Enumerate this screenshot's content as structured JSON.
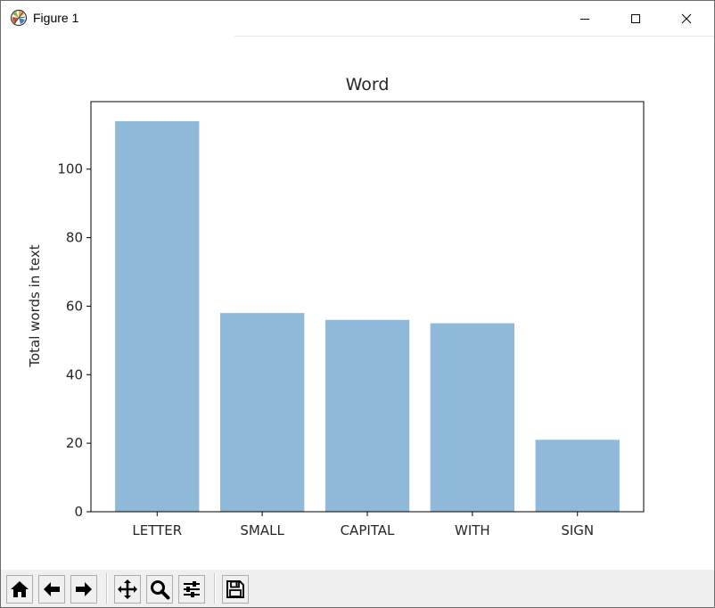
{
  "window": {
    "title": "Figure 1"
  },
  "toolbar": {
    "buttons": [
      {
        "name": "home-icon",
        "group": 0
      },
      {
        "name": "back-arrow-icon",
        "group": 0
      },
      {
        "name": "forward-arrow-icon",
        "group": 0
      },
      {
        "name": "pan-icon",
        "group": 1
      },
      {
        "name": "zoom-icon",
        "group": 1
      },
      {
        "name": "configure-subplots-icon",
        "group": 1
      },
      {
        "name": "save-icon",
        "group": 2
      }
    ]
  },
  "chart_data": {
    "type": "bar",
    "title": "Word",
    "xlabel": "",
    "ylabel": "Total words in text",
    "categories": [
      "LETTER",
      "SMALL",
      "CAPITAL",
      "WITH",
      "SIGN"
    ],
    "values": [
      114,
      58,
      56,
      55,
      21
    ],
    "ylim": [
      0,
      119.7
    ],
    "yticks": [
      0,
      20,
      40,
      60,
      80,
      100
    ],
    "grid": false,
    "legend": "none",
    "bar_color": "#8fb9d9"
  }
}
